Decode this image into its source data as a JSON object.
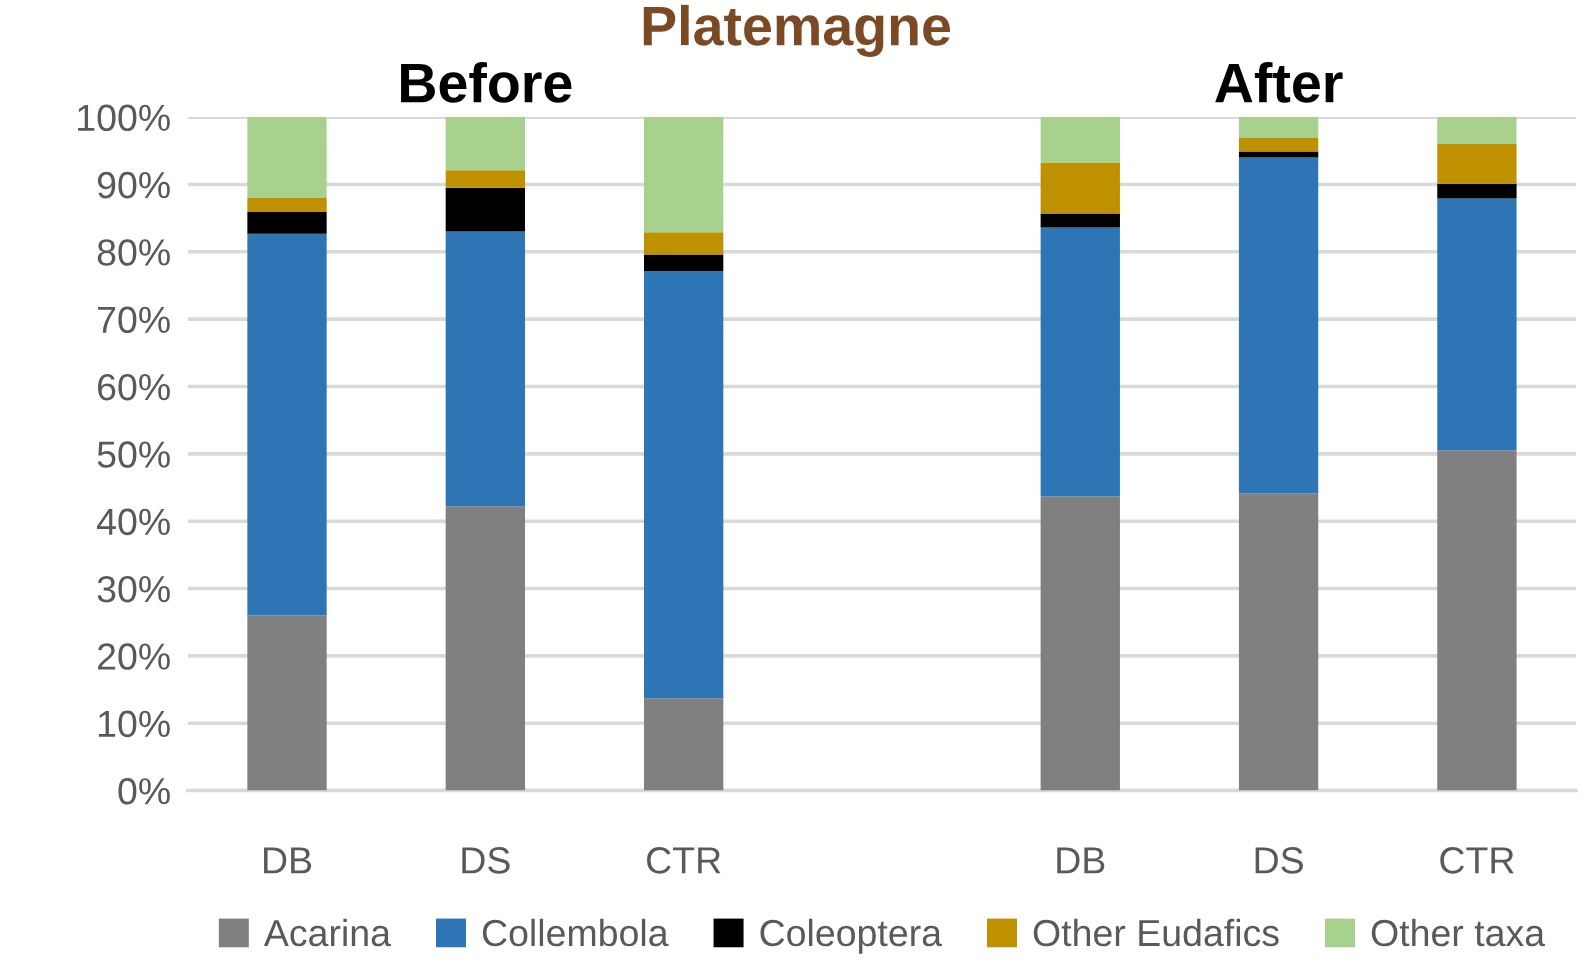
{
  "chart_data": {
    "type": "bar",
    "stacked": true,
    "title": "Platemagne",
    "annotations": [
      "Before",
      "After"
    ],
    "categories": [
      "DB",
      "DS",
      "CTR",
      null,
      "DB",
      "DS",
      "CTR"
    ],
    "series": [
      {
        "name": "Acarina",
        "color": "#808080",
        "values": [
          26.0,
          42.2,
          13.7,
          null,
          43.7,
          44.1,
          50.5
        ]
      },
      {
        "name": "Collembola",
        "color": "#2e75b6",
        "values": [
          56.7,
          40.8,
          63.4,
          null,
          39.9,
          49.9,
          37.4
        ]
      },
      {
        "name": "Coleoptera",
        "color": "#000000",
        "values": [
          3.2,
          6.5,
          2.5,
          null,
          2.1,
          0.9,
          2.2
        ]
      },
      {
        "name": "Other Eudafics",
        "color": "#bf9000",
        "values": [
          2.1,
          2.6,
          3.3,
          null,
          7.5,
          2.0,
          5.9
        ]
      },
      {
        "name": "Other taxa",
        "color": "#a9d18e",
        "values": [
          12.0,
          7.9,
          17.1,
          null,
          6.8,
          3.1,
          4.0
        ]
      }
    ],
    "ylim": [
      0,
      100
    ],
    "yticks": [
      {
        "value": 0,
        "label": "0%"
      },
      {
        "value": 10,
        "label": "10%"
      },
      {
        "value": 20,
        "label": "20%"
      },
      {
        "value": 30,
        "label": "30%"
      },
      {
        "value": 40,
        "label": "40%"
      },
      {
        "value": 50,
        "label": "50%"
      },
      {
        "value": 60,
        "label": "60%"
      },
      {
        "value": 70,
        "label": "70%"
      },
      {
        "value": 80,
        "label": "80%"
      },
      {
        "value": 90,
        "label": "90%"
      },
      {
        "value": 100,
        "label": "100%"
      }
    ],
    "grid": "y",
    "legend": "bottom"
  }
}
